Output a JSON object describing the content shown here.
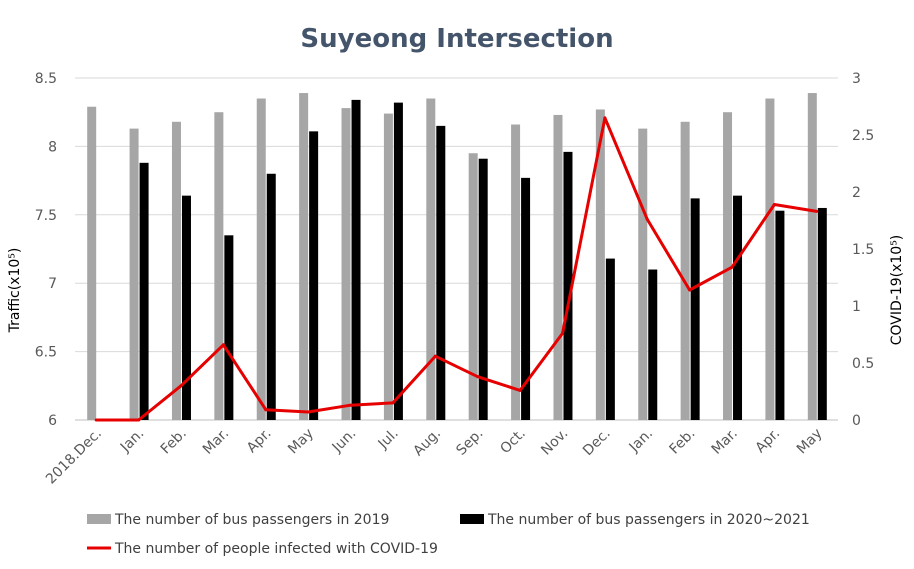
{
  "chart_data": {
    "type": "bar",
    "title": "Suyeong Intersection",
    "categories": [
      "2018.Dec.",
      "Jan.",
      "Feb.",
      "Mar.",
      "Apr.",
      "May",
      "Jun.",
      "Jul.",
      "Aug.",
      "Sep.",
      "Oct.",
      "Nov.",
      "Dec.",
      "Jan.",
      "Feb.",
      "Mar.",
      "Apr.",
      "May"
    ],
    "y_left": {
      "label": "Traffic(x10⁵)",
      "range": [
        6,
        8.5
      ],
      "ticks": [
        "6",
        "6.5",
        "7",
        "7.5",
        "8",
        "8.5"
      ]
    },
    "y_right": {
      "label": "COVID-19(x10⁵)",
      "range": [
        0,
        3
      ],
      "ticks": [
        "0",
        "0.5",
        "1",
        "1.5",
        "2",
        "2.5",
        "3"
      ]
    },
    "grid": true,
    "legend_position": "bottom",
    "series": [
      {
        "name": "The number of bus passengers in 2019",
        "kind": "bar",
        "axis": "left",
        "color": "#a6a6a6",
        "values": [
          8.29,
          8.13,
          8.18,
          8.25,
          8.35,
          8.39,
          8.28,
          8.24,
          8.35,
          7.95,
          8.16,
          8.23,
          8.27,
          8.13,
          8.18,
          8.25,
          8.35,
          8.39
        ]
      },
      {
        "name": "The number of bus passengers in 2020~2021",
        "kind": "bar",
        "axis": "left",
        "color": "#000000",
        "values": [
          null,
          7.88,
          7.64,
          7.35,
          7.8,
          8.11,
          8.34,
          8.32,
          8.15,
          7.91,
          7.77,
          7.96,
          7.18,
          7.1,
          7.62,
          7.64,
          7.53,
          7.55
        ]
      },
      {
        "name": "The number of people infected with COVID-19",
        "kind": "line",
        "axis": "right",
        "color": "#e60000",
        "values": [
          0,
          0,
          0.3,
          0.66,
          0.09,
          0.07,
          0.13,
          0.15,
          0.56,
          0.38,
          0.26,
          0.76,
          2.65,
          1.76,
          1.14,
          1.34,
          1.89,
          1.83
        ]
      }
    ]
  }
}
